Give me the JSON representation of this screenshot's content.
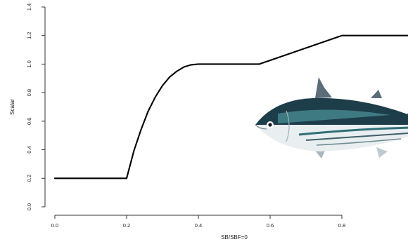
{
  "chart_data": {
    "type": "line",
    "xlabel": "SB/SBF=0",
    "ylabel": "Scalar",
    "xlim": [
      0.0,
      1.0
    ],
    "ylim": [
      0.0,
      1.4
    ],
    "x_ticks": [
      "0.0",
      "0.2",
      "0.4",
      "0.6",
      "0.8"
    ],
    "y_ticks": [
      "0.0",
      "0.2",
      "0.4",
      "0.6",
      "0.8",
      "1.0",
      "1.2",
      "1.4"
    ],
    "grid": false,
    "series": [
      {
        "color": "#000000",
        "x": [
          0.0,
          0.2,
          0.22,
          0.24,
          0.26,
          0.28,
          0.3,
          0.32,
          0.34,
          0.36,
          0.38,
          0.4,
          0.57,
          0.8,
          1.0
        ],
        "y": [
          0.2,
          0.2,
          0.39,
          0.54,
          0.67,
          0.77,
          0.85,
          0.91,
          0.95,
          0.98,
          0.995,
          1.0,
          1.0,
          1.2,
          1.2
        ]
      }
    ],
    "image_overlay": {
      "icon": "tuna-fish-illustration",
      "colors": {
        "back": "#1e3d4a",
        "back_highlight": "#4a8f96",
        "side_stripe": "#2f6f78",
        "belly": "#e9eef0",
        "fin": "#5a6d78"
      }
    }
  }
}
